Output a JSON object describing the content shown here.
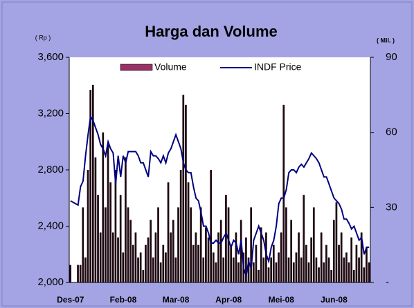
{
  "chart_data": {
    "type": "bar-line",
    "title": "Harga dan Volume",
    "y_label": "( Rp )",
    "y2_label": "( Mil. )",
    "categories": [
      "Des-07",
      null,
      null,
      null,
      null,
      null,
      null,
      null,
      null,
      null,
      null,
      null,
      null,
      null,
      null,
      null,
      null,
      null,
      null,
      null,
      null,
      "Feb-08",
      null,
      null,
      null,
      null,
      null,
      null,
      null,
      null,
      null,
      null,
      null,
      null,
      null,
      null,
      null,
      null,
      null,
      null,
      null,
      null,
      "Mar-08",
      null,
      null,
      null,
      null,
      null,
      null,
      null,
      null,
      null,
      null,
      null,
      null,
      null,
      null,
      null,
      null,
      null,
      null,
      null,
      null,
      "Apr-08",
      null,
      null,
      null,
      null,
      null,
      null,
      null,
      null,
      null,
      null,
      null,
      null,
      null,
      null,
      null,
      null,
      null,
      null,
      null,
      null,
      "Mei-08",
      null,
      null,
      null,
      null,
      null,
      null,
      null,
      null,
      null,
      null,
      null,
      null,
      null,
      null,
      null,
      null,
      null,
      null,
      null,
      null,
      "Jun-08",
      null,
      null,
      null,
      null,
      null,
      null,
      null,
      null,
      null,
      null,
      null,
      null,
      null,
      null
    ],
    "series": [
      {
        "name": "Volume",
        "type": "bar",
        "axis": "y2",
        "color": "#1e0812",
        "legend_color": "#993366",
        "values": [
          7,
          0,
          0,
          7,
          7,
          30,
          10,
          45,
          77,
          79,
          50,
          35,
          20,
          60,
          30,
          55,
          40,
          20,
          45,
          18,
          35,
          12,
          50,
          30,
          25,
          15,
          20,
          10,
          12,
          5,
          15,
          18,
          25,
          10,
          20,
          30,
          8,
          15,
          12,
          40,
          20,
          25,
          10,
          30,
          45,
          75,
          71,
          40,
          30,
          15,
          20,
          15,
          30,
          10,
          22,
          18,
          45,
          12,
          8,
          20,
          25,
          10,
          35,
          30,
          15,
          10,
          20,
          8,
          25,
          12,
          18,
          10,
          30,
          8,
          15,
          5,
          22,
          10,
          20,
          6,
          10,
          15,
          8,
          12,
          20,
          71,
          30,
          10,
          25,
          8,
          12,
          20,
          10,
          35,
          15,
          8,
          18,
          30,
          10,
          6,
          20,
          8,
          15,
          10,
          5,
          25,
          32,
          15,
          20,
          10,
          12,
          8,
          18,
          5,
          15,
          10,
          20,
          6,
          14,
          8
        ]
      },
      {
        "name": "INDF Price",
        "type": "line",
        "axis": "y",
        "color": "#000080",
        "values": [
          2580,
          2570,
          2560,
          2550,
          2680,
          2720,
          2900,
          3050,
          3180,
          3150,
          3100,
          3050,
          2980,
          2950,
          2900,
          3000,
          2950,
          2920,
          2700,
          2900,
          2750,
          2900,
          2850,
          2930,
          2930,
          2930,
          2930,
          2900,
          2850,
          2850,
          2800,
          2750,
          2930,
          2900,
          2900,
          2880,
          2850,
          2900,
          2850,
          2920,
          2950,
          3000,
          3050,
          3000,
          2950,
          2850,
          2800,
          2780,
          2780,
          2680,
          2600,
          2580,
          2500,
          2400,
          2400,
          2350,
          2280,
          2280,
          2300,
          2280,
          2280,
          2320,
          2350,
          2300,
          2250,
          2300,
          2280,
          2200,
          2300,
          2100,
          2050,
          2150,
          2100,
          2300,
          2350,
          2400,
          2350,
          2300,
          2200,
          2150,
          2250,
          2300,
          2400,
          2560,
          2600,
          2600,
          2660,
          2780,
          2800,
          2800,
          2780,
          2820,
          2840,
          2820,
          2850,
          2880,
          2920,
          2900,
          2880,
          2850,
          2800,
          2750,
          2750,
          2700,
          2650,
          2600,
          2580,
          2560,
          2520,
          2450,
          2450,
          2420,
          2380,
          2400,
          2350,
          2300,
          2320,
          2200,
          2250,
          2250
        ]
      }
    ],
    "ylim": [
      2000,
      3600
    ],
    "yticks": [
      {
        "value": 2000,
        "label": "2,000"
      },
      {
        "value": 2400,
        "label": "2,400"
      },
      {
        "value": 2800,
        "label": "2,800"
      },
      {
        "value": 3200,
        "label": "3,200"
      },
      {
        "value": 3600,
        "label": "3,600"
      }
    ],
    "y2lim": [
      0,
      90
    ],
    "y2ticks": [
      {
        "value": 0,
        "label": "-"
      },
      30,
      60,
      90
    ],
    "legend": "top"
  }
}
